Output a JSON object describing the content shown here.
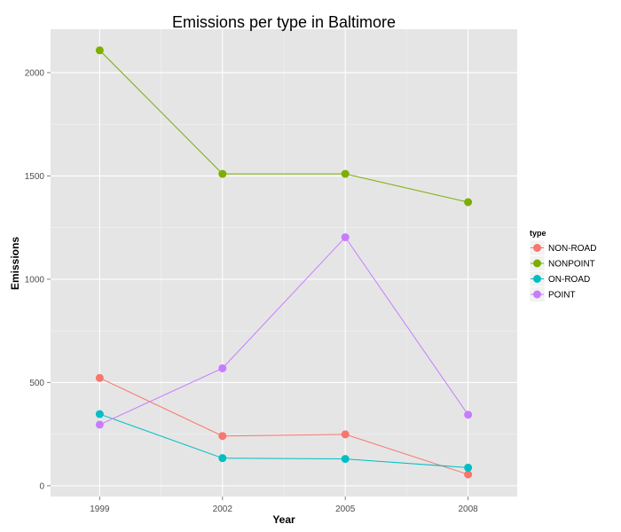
{
  "chart_data": {
    "type": "line",
    "title": "Emissions per type in Baltimore",
    "xlabel": "Year",
    "ylabel": "Emissions",
    "x": [
      1999,
      2002,
      2005,
      2008
    ],
    "x_tick_labels": [
      "1999",
      "2002",
      "2005",
      "2008"
    ],
    "xlim": [
      1997.8,
      2009.2
    ],
    "y_ticks": [
      0,
      500,
      1000,
      1500,
      2000
    ],
    "y_tick_labels": [
      "0",
      "500",
      "1000",
      "1500",
      "2000"
    ],
    "ylim": [
      -52,
      2210
    ],
    "grid": true,
    "legend": {
      "title": "type",
      "position": "right"
    },
    "series": [
      {
        "name": "NON-ROAD",
        "color": "#f8766d",
        "values": [
          522,
          241,
          249,
          55
        ]
      },
      {
        "name": "NONPOINT",
        "color": "#7cae00",
        "values": [
          2108,
          1510,
          1510,
          1373
        ]
      },
      {
        "name": "ON-ROAD",
        "color": "#00bfc4",
        "values": [
          347,
          134,
          130,
          88
        ]
      },
      {
        "name": "POINT",
        "color": "#c77cff",
        "values": [
          296,
          569,
          1203,
          344
        ]
      }
    ]
  }
}
